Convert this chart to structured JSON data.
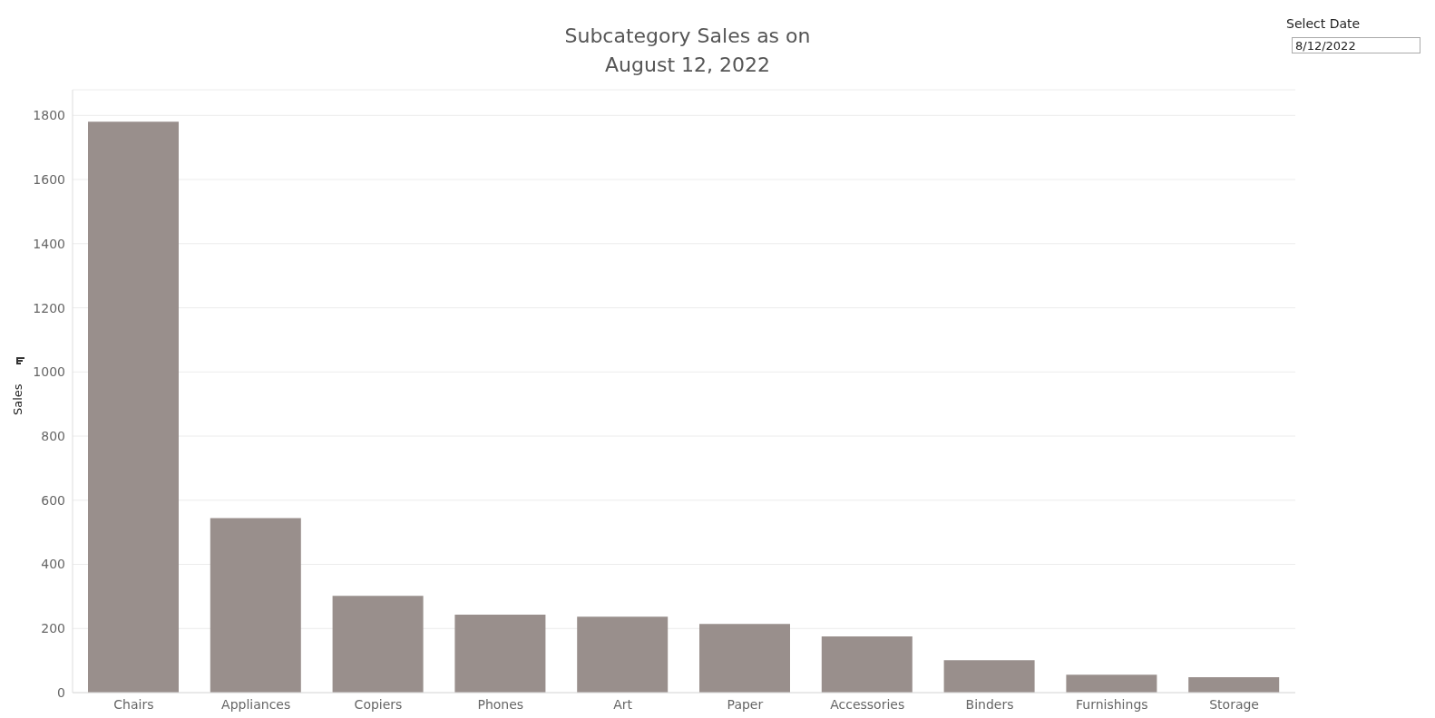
{
  "chart_data": {
    "type": "bar",
    "title": "Subcategory Sales as on\nAugust 12, 2022",
    "ylabel": "Sales",
    "categories": [
      "Chairs",
      "Appliances",
      "Copiers",
      "Phones",
      "Art",
      "Paper",
      "Accessories",
      "Binders",
      "Furnishings",
      "Storage"
    ],
    "values": [
      1780,
      544,
      302,
      243,
      237,
      214,
      175,
      101,
      56,
      48
    ],
    "color": "#998f8c",
    "ylim": [
      0,
      1880
    ],
    "yticks": [
      0,
      200,
      400,
      600,
      800,
      1000,
      1200,
      1400,
      1600,
      1800
    ],
    "grid": "y",
    "legend": false,
    "annotations": [
      "Select Date",
      "8/12/2022"
    ]
  }
}
